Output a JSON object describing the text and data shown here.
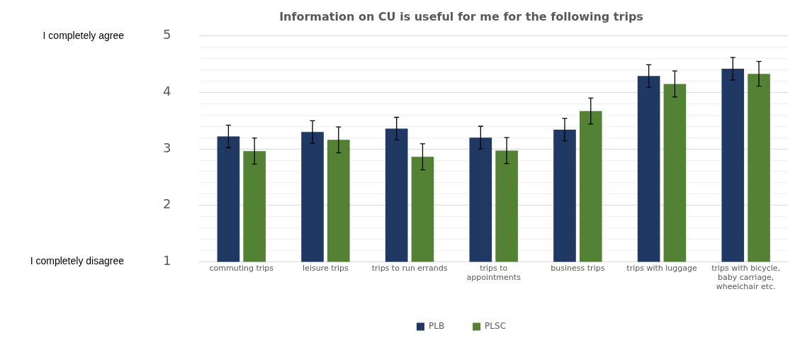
{
  "chart_data": {
    "type": "bar",
    "title": "Information on CU is useful for me for the following trips",
    "categories": [
      "commuting trips",
      "leisure trips",
      "trips to run errands",
      "trips to appointments",
      "business trips",
      "trips with luggage",
      "trips with bicycle, baby carriage, wheelchair etc."
    ],
    "series": [
      {
        "name": "PLB",
        "color": "#203864",
        "values": [
          3.22,
          3.3,
          3.36,
          3.2,
          3.34,
          4.29,
          4.42
        ],
        "errors": [
          0.2,
          0.2,
          0.2,
          0.2,
          0.2,
          0.2,
          0.2
        ]
      },
      {
        "name": "PLSC",
        "color": "#548235",
        "values": [
          2.96,
          3.16,
          2.86,
          2.97,
          3.67,
          4.15,
          4.33
        ],
        "errors": [
          0.23,
          0.23,
          0.23,
          0.23,
          0.23,
          0.23,
          0.22
        ]
      }
    ],
    "ylim": [
      1,
      5
    ],
    "yticks": [
      1,
      {
        "value": 1.2,
        "label": null
      },
      {
        "value": 1.4,
        "label": null
      },
      {
        "value": 1.6,
        "label": null
      },
      {
        "value": 1.8,
        "label": null
      },
      2,
      {
        "value": 2.2,
        "label": null
      },
      {
        "value": 2.4,
        "label": null
      },
      {
        "value": 2.6,
        "label": null
      },
      {
        "value": 2.8,
        "label": null
      },
      3,
      {
        "value": 3.2,
        "label": null
      },
      {
        "value": 3.4,
        "label": null
      },
      {
        "value": 3.6,
        "label": null
      },
      {
        "value": 3.8,
        "label": null
      },
      4,
      {
        "value": 4.2,
        "label": null
      },
      {
        "value": 4.4,
        "label": null
      },
      {
        "value": 4.6,
        "label": null
      },
      {
        "value": 4.8,
        "label": null
      },
      5
    ],
    "annotations": [
      "I completely agree",
      "I completely disagree"
    ],
    "grid": "y",
    "legend": "bottom"
  }
}
